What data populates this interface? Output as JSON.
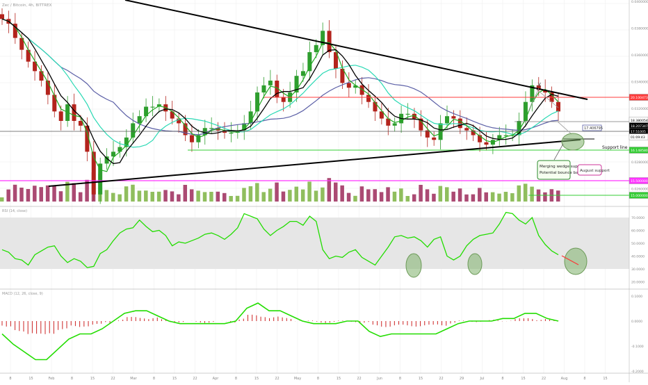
{
  "header": {
    "symbol_line": "Zec / Bitcoin, 4h, BITTREX"
  },
  "colors": {
    "background": "#ffffff",
    "grid": "#eeeeee",
    "candle_up": "#2e9e2e",
    "candle_down": "#b3231c",
    "volume_up": "#7cb342",
    "volume_down": "#9c2a5a",
    "ema_fast": "#000000",
    "ma_green": "#22aa22",
    "ma_teal": "#2ad9b4",
    "ma_blue": "#5b5fa6",
    "rsi_line": "#22dd00",
    "macd_line": "#22dd00",
    "resistance_red": "#ff3b3b",
    "august_support": "#ff33ff",
    "support_green": "#33cc33",
    "ellipse_fill": "#7db06a"
  },
  "annotations": {
    "callout_wedge_line1": "Merging wedge support",
    "callout_wedge_line2": "Potential bounce barrier",
    "august_support": "August support",
    "support_line": "Support line",
    "x_marker": "X"
  },
  "price_scale_labels": [
    "0.04000000",
    "0.03800000",
    "0.03600000",
    "0.03400000",
    "0.03200000",
    "0.03000000",
    "0.02800000",
    "0.02600000"
  ],
  "price_tags": {
    "resistance": "20.100473",
    "ema_upper": "18.380054",
    "last_price": "18.207347",
    "current": "17.51005",
    "countdown": "01:09:43",
    "ema_lower": "17.406795",
    "support": "16.148580",
    "august": "15.500000",
    "bottom": "15.000000"
  },
  "rsi_panel": {
    "title": "RSI (14, close)",
    "scale": [
      "70.0000",
      "60.0000",
      "50.0000",
      "40.0000",
      "30.0000",
      "20.0000"
    ]
  },
  "macd_panel": {
    "title": "MACD (12, 26, close, 9)",
    "scale": [
      "0.1000",
      "0.0000",
      "-0.1000",
      "-0.2000"
    ]
  },
  "x_axis_labels": [
    "8",
    "15",
    "Feb",
    "8",
    "15",
    "22",
    "Mar",
    "8",
    "15",
    "22",
    "Apr",
    "8",
    "15",
    "22",
    "May",
    "8",
    "15",
    "22",
    "Jun",
    "8",
    "15",
    "22",
    "29",
    "Jul",
    "8",
    "15",
    "22",
    "Aug",
    "8",
    "15"
  ],
  "chart_data": {
    "type": "candlestick",
    "title": "Zec / Bitcoin, 4h, BITTREX",
    "ylim": [
      14.5,
      23.0
    ],
    "price_close": [
      22.2,
      22.0,
      21.4,
      20.9,
      20.4,
      20.0,
      19.6,
      19.0,
      18.3,
      17.9,
      18.6,
      17.9,
      17.7,
      16.6,
      14.8,
      16.1,
      16.4,
      16.6,
      16.8,
      17.2,
      17.8,
      18.1,
      18.5,
      18.5,
      18.6,
      18.3,
      18.0,
      17.8,
      17.3,
      17.0,
      17.3,
      17.6,
      17.6,
      17.5,
      17.4,
      17.4,
      17.5,
      17.8,
      18.3,
      19.1,
      19.4,
      19.6,
      18.9,
      18.7,
      19.1,
      19.8,
      20.0,
      20.8,
      21.1,
      21.7,
      20.8,
      20.1,
      19.5,
      19.3,
      19.4,
      19.0,
      18.7,
      18.3,
      18.0,
      17.7,
      17.8,
      18.2,
      18.2,
      18.0,
      17.5,
      17.2,
      17.1,
      17.8,
      18.1,
      18.0,
      17.6,
      17.5,
      17.3,
      17.0,
      16.9,
      17.1,
      17.3,
      17.3,
      17.3,
      17.9,
      18.7,
      19.4,
      19.2,
      19.1,
      18.7,
      18.3
    ],
    "rsi": [
      45,
      43,
      38,
      37,
      33,
      41,
      44,
      47,
      48,
      40,
      35,
      38,
      36,
      31,
      32,
      42,
      45,
      52,
      58,
      61,
      62,
      68,
      63,
      59,
      60,
      56,
      48,
      51,
      50,
      52,
      54,
      57,
      58,
      56,
      53,
      57,
      62,
      73,
      71,
      69,
      61,
      56,
      60,
      63,
      67,
      67,
      64,
      71,
      67,
      45,
      38,
      40,
      39,
      43,
      45,
      39,
      36,
      33,
      40,
      47,
      55,
      56,
      54,
      55,
      52,
      47,
      53,
      55,
      40,
      37,
      40,
      48,
      53,
      56,
      57,
      58,
      65,
      74,
      73,
      68,
      65,
      70,
      56,
      49,
      44,
      41
    ],
    "macd": [
      -0.05,
      -0.09,
      -0.12,
      -0.15,
      -0.15,
      -0.11,
      -0.07,
      -0.05,
      -0.05,
      -0.03,
      0.0,
      0.03,
      0.04,
      0.04,
      0.02,
      0.0,
      -0.01,
      -0.01,
      -0.01,
      -0.01,
      -0.01,
      0.0,
      0.05,
      0.07,
      0.04,
      0.04,
      0.02,
      0.0,
      -0.01,
      -0.01,
      -0.01,
      0.0,
      0.0,
      -0.04,
      -0.06,
      -0.05,
      -0.05,
      -0.05,
      -0.05,
      -0.05,
      -0.03,
      -0.01,
      0.0,
      0.0,
      0.0,
      0.01,
      0.01,
      0.03,
      0.03,
      0.01,
      0.0
    ]
  }
}
